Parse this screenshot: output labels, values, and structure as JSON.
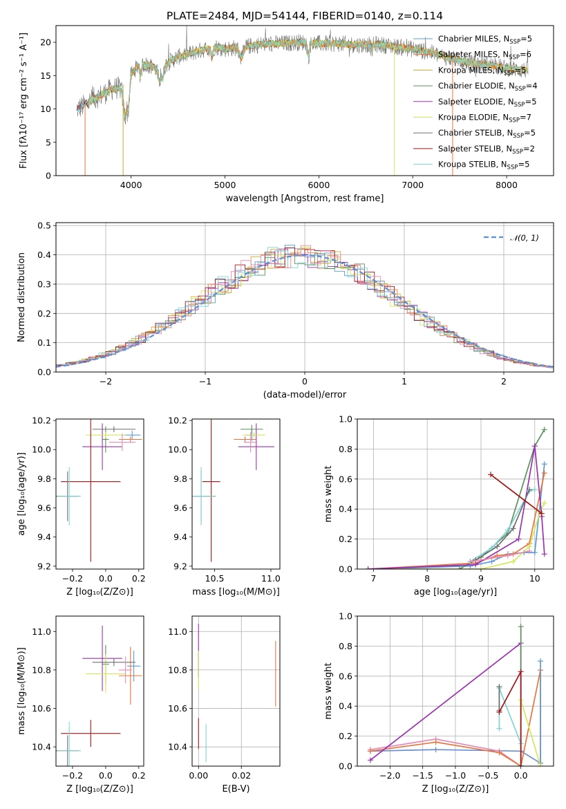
{
  "colors": {
    "chabrier_miles": "#5b9bd5",
    "salpeter_miles": "#e8743b",
    "kroupa_miles": "#d4a72c",
    "chabrier_elodie": "#5a8f5a",
    "salpeter_elodie": "#9b30b0",
    "kroupa_elodie": "#d4e85a",
    "chabrier_stelib": "#6e6e6e",
    "salpeter_stelib": "#a31515",
    "kroupa_stelib": "#7fd3d6",
    "pink": "#e58bb5",
    "blue2": "#6a8cd6",
    "gauss": "#5b8fd8"
  },
  "chart_data": [
    {
      "id": "spectrum",
      "type": "line",
      "title": "PLATE=2484, MJD=54144, FIBERID=0140, z=0.114",
      "xlabel": "wavelength [Angstrom, rest frame]",
      "ylabel": "Flux [fλ10⁻¹⁷ erg cm⁻² s⁻¹ A⁻¹]",
      "xlim": [
        3200,
        8500
      ],
      "ylim": [
        0,
        22.5
      ],
      "xticks": [
        4000,
        5000,
        6000,
        7000,
        8000
      ],
      "yticks": [
        0,
        5,
        10,
        15,
        20
      ],
      "grid": false,
      "legend_position": "right",
      "legend": [
        "Chabrier MILES, N_SSP=5",
        "Salpeter MILES, N_SSP=6",
        "Kroupa MILES, N_SSP=5",
        "Chabrier ELODIE, N_SSP=4",
        "Salpeter ELODIE, N_SSP=5",
        "Kroupa ELODIE, N_SSP=7",
        "Chabrier STELIB, N_SSP=5",
        "Salpeter STELIB, N_SSP=2",
        "Kroupa STELIB, N_SSP=5"
      ],
      "continuum": {
        "x": [
          3400,
          3500,
          3600,
          3700,
          3800,
          3900,
          4000,
          4100,
          4200,
          4300,
          4400,
          4500,
          4600,
          4700,
          4800,
          4900,
          5000,
          5200,
          5400,
          5600,
          5800,
          6000,
          6200,
          6400,
          6600,
          6800,
          7000,
          7200,
          7400,
          7600,
          7800,
          8000,
          8200
        ],
        "y": [
          9.8,
          10.5,
          11.5,
          12.2,
          13.0,
          13.2,
          16.2,
          16.8,
          16.5,
          15.8,
          17.0,
          17.8,
          18.2,
          18.6,
          19.0,
          19.3,
          19.0,
          19.3,
          19.7,
          19.8,
          20.0,
          19.8,
          19.8,
          19.6,
          19.7,
          19.4,
          19.0,
          18.4,
          17.6,
          16.9,
          16.6,
          16.1,
          15.8
        ]
      }
    },
    {
      "id": "residuals",
      "type": "line",
      "xlabel": "(data-model)/error",
      "ylabel": "Normed distribution",
      "xlim": [
        -2.5,
        2.5
      ],
      "ylim": [
        0,
        0.51
      ],
      "xticks": [
        -2,
        -1,
        0,
        1,
        2
      ],
      "yticks": [
        0.0,
        0.1,
        0.2,
        0.3,
        0.4,
        0.5
      ],
      "grid": true,
      "legend": [
        "𝒩(0, 1)"
      ],
      "legend_position": "top-right",
      "gaussian": {
        "mean": 0,
        "sigma": 1
      }
    },
    {
      "id": "age_vs_Z",
      "type": "scatter",
      "xlabel": "Z [log₁₀(Z/Z⊙)]",
      "ylabel": "age  [log₁₀(age/yr)]",
      "xlim": [
        -0.3,
        0.23
      ],
      "ylim": [
        9.18,
        10.21
      ],
      "xticks": [
        -0.2,
        0.0,
        0.2
      ],
      "yticks": [
        9.2,
        9.4,
        9.6,
        9.8,
        10.0,
        10.2
      ],
      "grid": false,
      "points": [
        {
          "c": "chabrier_miles",
          "x": 0.16,
          "xe": 0.05,
          "y": 10.1,
          "ye": 0.03
        },
        {
          "c": "salpeter_miles",
          "x": 0.15,
          "xe": 0.07,
          "y": 10.07,
          "ye": 0.02
        },
        {
          "c": "chabrier_elodie",
          "x": 0.0,
          "xe": 0.02,
          "y": 10.07,
          "ye": 0.09
        },
        {
          "c": "salpeter_elodie",
          "x": -0.02,
          "xe": 0.12,
          "y": 10.02,
          "ye": 0.16
        },
        {
          "c": "kroupa_elodie",
          "x": 0.0,
          "xe": 0.12,
          "y": 10.1,
          "ye": 0.02
        },
        {
          "c": "chabrier_stelib",
          "x": 0.05,
          "xe": 0.13,
          "y": 10.14,
          "ye": 0.02
        },
        {
          "c": "pink",
          "x": 0.1,
          "xe": 0.08,
          "y": 10.05,
          "ye": 0.06
        },
        {
          "c": "salpeter_stelib",
          "x": -0.09,
          "xe": 0.18,
          "y": 9.78,
          "ye": 0.55
        },
        {
          "c": "chabrier_stelib",
          "x": -0.23,
          "xe": 0.07,
          "y": 9.68,
          "ye": 0.17
        },
        {
          "c": "kroupa_stelib",
          "x": -0.22,
          "xe": 0.07,
          "y": 9.68,
          "ye": 0.2
        }
      ]
    },
    {
      "id": "age_vs_mass",
      "type": "scatter",
      "xlabel": "mass [log₁₀(M/M⊙)]",
      "ylabel": "",
      "xlim": [
        10.3,
        11.08
      ],
      "ylim": [
        9.18,
        10.21
      ],
      "xticks": [
        10.5,
        11.0
      ],
      "yticks": [
        9.2,
        9.4,
        9.6,
        9.8,
        10.0,
        10.2
      ],
      "grid": false,
      "points": [
        {
          "c": "chabrier_miles",
          "x": 10.83,
          "xe": 0.05,
          "y": 10.1,
          "ye": 0.04
        },
        {
          "c": "salpeter_miles",
          "x": 10.77,
          "xe": 0.1,
          "y": 10.07,
          "ye": 0.02
        },
        {
          "c": "chabrier_elodie",
          "x": 10.83,
          "xe": 0.1,
          "y": 10.14,
          "ye": 0.03
        },
        {
          "c": "salpeter_elodie",
          "x": 10.87,
          "xe": 0.16,
          "y": 10.02,
          "ye": 0.16
        },
        {
          "c": "kroupa_elodie",
          "x": 10.85,
          "xe": 0.1,
          "y": 10.1,
          "ye": 0.02
        },
        {
          "c": "pink",
          "x": 10.82,
          "xe": 0.06,
          "y": 10.05,
          "ye": 0.07
        },
        {
          "c": "salpeter_stelib",
          "x": 10.47,
          "xe": 0.08,
          "y": 9.78,
          "ye": 0.55
        },
        {
          "c": "chabrier_stelib",
          "x": 10.38,
          "xe": 0.13,
          "y": 9.68,
          "ye": 0.18
        },
        {
          "c": "kroupa_stelib",
          "x": 10.38,
          "xe": 0.13,
          "y": 9.68,
          "ye": 0.2
        }
      ]
    },
    {
      "id": "weight_vs_age",
      "type": "line",
      "xlabel": "age  [log₁₀(age/yr)]",
      "ylabel": "mass weight",
      "xlim": [
        6.7,
        10.35
      ],
      "ylim": [
        0,
        1.0
      ],
      "xticks": [
        7,
        8,
        9,
        10
      ],
      "yticks": [
        0.0,
        0.2,
        0.4,
        0.6,
        0.8,
        1.0
      ],
      "grid": true,
      "series": [
        {
          "c": "chabrier_miles",
          "x": [
            6.9,
            8.8,
            9.2,
            9.5,
            9.8,
            10.0,
            10.18
          ],
          "y": [
            0.0,
            0.02,
            0.05,
            0.1,
            0.11,
            0.11,
            0.7
          ]
        },
        {
          "c": "salpeter_miles",
          "x": [
            6.9,
            8.9,
            9.3,
            9.6,
            9.9,
            10.18
          ],
          "y": [
            0.0,
            0.04,
            0.09,
            0.1,
            0.17,
            0.64
          ]
        },
        {
          "c": "kroupa_elodie",
          "x": [
            6.9,
            9.0,
            9.6,
            9.9,
            10.1,
            10.18
          ],
          "y": [
            0.0,
            0.0,
            0.05,
            0.15,
            0.38,
            0.44
          ]
        },
        {
          "c": "chabrier_elodie",
          "x": [
            8.6,
            9.0,
            9.5,
            10.0,
            10.18
          ],
          "y": [
            0.0,
            0.08,
            0.24,
            0.82,
            0.93
          ]
        },
        {
          "c": "salpeter_elodie",
          "x": [
            6.9,
            8.9,
            9.7,
            10.0,
            10.13,
            10.18
          ],
          "y": [
            0.0,
            0.03,
            0.2,
            0.82,
            0.35,
            0.1
          ]
        },
        {
          "c": "kroupa_stelib",
          "x": [
            8.8,
            9.2,
            9.5,
            9.9,
            10.0
          ],
          "y": [
            0.05,
            0.14,
            0.26,
            0.52,
            0.53
          ]
        },
        {
          "c": "chabrier_stelib",
          "x": [
            8.9,
            9.3,
            9.6,
            9.9
          ],
          "y": [
            0.06,
            0.15,
            0.27,
            0.53
          ]
        },
        {
          "c": "salpeter_stelib",
          "x": [
            9.18,
            10.13
          ],
          "y": [
            0.63,
            0.37
          ]
        },
        {
          "c": "pink",
          "x": [
            8.8,
            9.5,
            9.9
          ],
          "y": [
            0.05,
            0.09,
            0.12
          ]
        }
      ]
    },
    {
      "id": "mass_vs_Z",
      "type": "scatter",
      "xlabel": "Z [log₁₀(Z/Z⊙)]",
      "ylabel": "mass [log₁₀(M/M⊙)]",
      "xlim": [
        -0.3,
        0.23
      ],
      "ylim": [
        10.3,
        11.08
      ],
      "xticks": [
        -0.2,
        0.0,
        0.2
      ],
      "yticks": [
        10.4,
        10.6,
        10.8,
        11.0
      ],
      "grid": false,
      "points": [
        {
          "c": "chabrier_miles",
          "x": 0.17,
          "xe": 0.04,
          "y": 10.82,
          "ye": 0.08
        },
        {
          "c": "salpeter_miles",
          "x": 0.15,
          "xe": 0.07,
          "y": 10.77,
          "ye": 0.15
        },
        {
          "c": "chabrier_elodie",
          "x": 0.0,
          "xe": 0.02,
          "y": 10.83,
          "ye": 0.1
        },
        {
          "c": "salpeter_elodie",
          "x": -0.02,
          "xe": 0.12,
          "y": 10.86,
          "ye": 0.17
        },
        {
          "c": "kroupa_elodie",
          "x": 0.0,
          "xe": 0.12,
          "y": 10.78,
          "ye": 0.1
        },
        {
          "c": "chabrier_stelib",
          "x": 0.05,
          "xe": 0.13,
          "y": 10.84,
          "ye": 0.02
        },
        {
          "c": "pink",
          "x": 0.12,
          "xe": 0.04,
          "y": 10.8,
          "ye": 0.07
        },
        {
          "c": "salpeter_stelib",
          "x": -0.09,
          "xe": 0.18,
          "y": 10.47,
          "ye": 0.07
        },
        {
          "c": "chabrier_stelib",
          "x": -0.23,
          "xe": 0.07,
          "y": 10.38,
          "ye": 0.08
        },
        {
          "c": "kroupa_stelib",
          "x": -0.22,
          "xe": 0.07,
          "y": 10.38,
          "ye": 0.15
        }
      ]
    },
    {
      "id": "mass_vs_ebv",
      "type": "scatter",
      "xlabel": "E(B-V)",
      "ylabel": "",
      "xlim": [
        -0.003,
        0.038
      ],
      "ylim": [
        10.3,
        11.08
      ],
      "xticks": [
        0.0,
        0.02
      ],
      "yticks": [
        10.4,
        10.6,
        10.8,
        11.0
      ],
      "grid": true,
      "points": [
        {
          "c": "salpeter_elodie",
          "x": 0.0,
          "xe": 0,
          "y": 10.9,
          "ye": 0.14
        },
        {
          "c": "kroupa_elodie",
          "x": 0.0,
          "xe": 0,
          "y": 10.8,
          "ye": 0.1
        },
        {
          "c": "salpeter_stelib",
          "x": 0.0,
          "xe": 0,
          "y": 10.47,
          "ye": 0.08
        },
        {
          "c": "kroupa_stelib",
          "x": 0.0035,
          "xe": 0,
          "y": 10.42,
          "ye": 0.1
        },
        {
          "c": "salpeter_miles",
          "x": 0.036,
          "xe": 0,
          "y": 10.78,
          "ye": 0.17
        }
      ]
    },
    {
      "id": "weight_vs_Z",
      "type": "line",
      "xlabel": "Z [log₁₀(Z/Z⊙)]",
      "ylabel": "mass weight",
      "xlim": [
        -2.5,
        0.5
      ],
      "ylim": [
        0,
        1.0
      ],
      "xticks": [
        -2.0,
        -1.5,
        -1.0,
        -0.5,
        0.0
      ],
      "yticks": [
        0.0,
        0.2,
        0.4,
        0.6,
        0.8,
        1.0
      ],
      "grid": true,
      "series": [
        {
          "c": "blue2",
          "x": [
            -2.3,
            -1.3,
            0.0,
            0.3
          ],
          "y": [
            0.1,
            0.11,
            0.1,
            0.02
          ]
        },
        {
          "c": "pink",
          "x": [
            -2.3,
            -1.3,
            -0.33,
            0.0
          ],
          "y": [
            0.11,
            0.18,
            0.1,
            0.0
          ]
        },
        {
          "c": "salpeter_miles",
          "x": [
            -2.3,
            -1.3,
            -0.33,
            0.0,
            0.3,
            0.3
          ],
          "y": [
            0.1,
            0.16,
            0.09,
            0.0,
            0.64,
            0.0
          ]
        },
        {
          "c": "salpeter_elodie",
          "x": [
            -2.3,
            0.0,
            0.0
          ],
          "y": [
            0.04,
            0.82,
            0.0
          ]
        },
        {
          "c": "chabrier_elodie",
          "x": [
            0.0,
            0.0
          ],
          "y": [
            0.0,
            0.93
          ]
        },
        {
          "c": "chabrier_miles",
          "x": [
            0.3,
            0.3
          ],
          "y": [
            0.02,
            0.7
          ]
        },
        {
          "c": "kroupa_elodie",
          "x": [
            0.0,
            0.0,
            0.3
          ],
          "y": [
            0.0,
            0.44,
            0.0
          ]
        },
        {
          "c": "kroupa_stelib",
          "x": [
            -0.33,
            -0.33,
            0.0,
            0.0
          ],
          "y": [
            0.25,
            0.52,
            0.15,
            0.0
          ]
        },
        {
          "c": "chabrier_stelib",
          "x": [
            -0.33,
            -0.33
          ],
          "y": [
            0.37,
            0.53
          ]
        },
        {
          "c": "salpeter_stelib",
          "x": [
            -0.33,
            0.0,
            0.0
          ],
          "y": [
            0.36,
            0.63,
            0.0
          ]
        }
      ]
    }
  ]
}
